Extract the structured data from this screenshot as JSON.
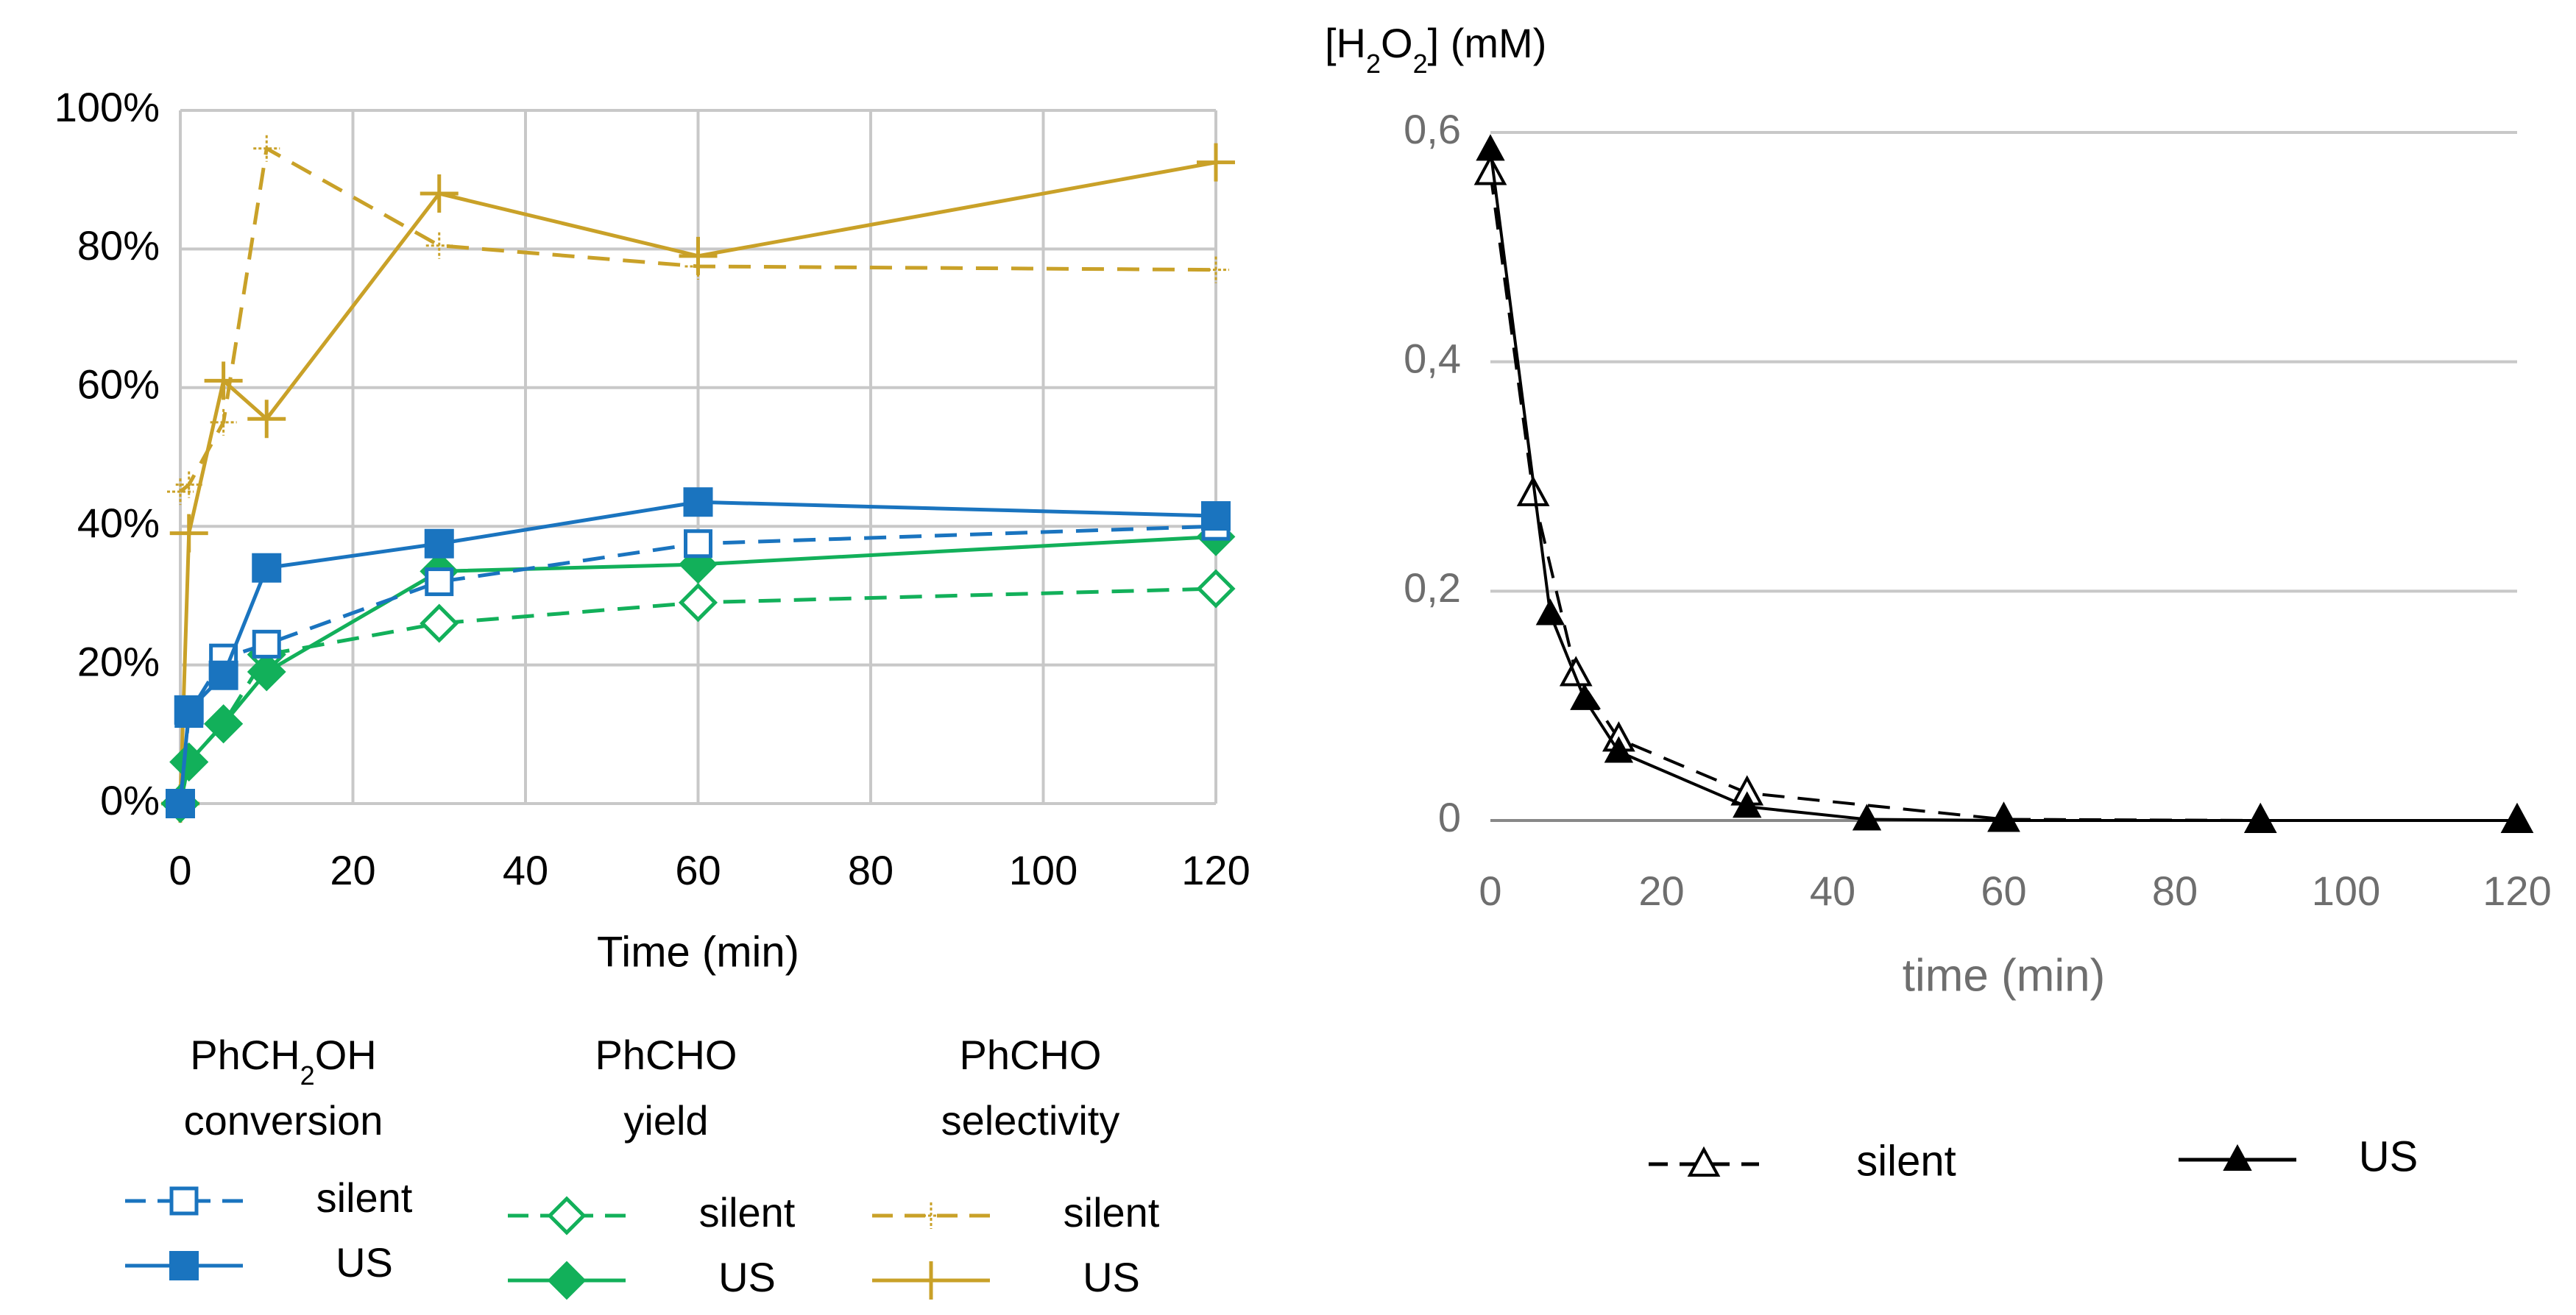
{
  "colors": {
    "conversion": "#1a74bf",
    "yield": "#12b05a",
    "selectivity": "#c9a128",
    "h2o2": "#000000",
    "grid": "#c8c8c8",
    "axis_text_left": "#000000",
    "axis_text_right": "#6e6e6e"
  },
  "chart_data": [
    {
      "type": "line",
      "title": "",
      "xlabel": "Time (min)",
      "ylabel": "",
      "xlim": [
        0,
        120
      ],
      "ylim": [
        0,
        100
      ],
      "xticks": [
        "0",
        "20",
        "40",
        "60",
        "80",
        "100",
        "120"
      ],
      "yticks": [
        "0%",
        "20%",
        "40%",
        "60%",
        "80%",
        "100%"
      ],
      "grid": "horizontal",
      "legend_groups": [
        {
          "title_parts": [
            "PhCH",
            "2",
            "OH"
          ],
          "title_line2": "conversion"
        },
        {
          "title_parts": [
            "PhCHO",
            "",
            ""
          ],
          "title_line2": "yield"
        },
        {
          "title_parts": [
            "PhCHO",
            "",
            ""
          ],
          "title_line2": "selectivity"
        }
      ],
      "series": [
        {
          "name": "silent",
          "group": "PhCH2OH conversion",
          "style": "dashed",
          "marker": "open-square",
          "x": [
            0,
            1,
            5,
            10,
            30,
            60,
            120
          ],
          "values": [
            0,
            13,
            21,
            23,
            32,
            37.5,
            40
          ]
        },
        {
          "name": "US",
          "group": "PhCH2OH conversion",
          "style": "solid",
          "marker": "filled-square",
          "x": [
            0,
            1,
            5,
            10,
            30,
            60,
            120
          ],
          "values": [
            0,
            13.5,
            18.5,
            34,
            37.5,
            43.5,
            41.5
          ]
        },
        {
          "name": "silent",
          "group": "PhCHO yield",
          "style": "dashed",
          "marker": "open-diamond",
          "x": [
            0,
            1,
            5,
            10,
            30,
            60,
            120
          ],
          "values": [
            0,
            6,
            11.5,
            21.5,
            26,
            29,
            31
          ]
        },
        {
          "name": "US",
          "group": "PhCHO yield",
          "style": "solid",
          "marker": "filled-diamond",
          "x": [
            0,
            1,
            5,
            10,
            30,
            60,
            120
          ],
          "values": [
            0,
            6,
            11.5,
            19,
            33.5,
            34.5,
            38.5
          ]
        },
        {
          "name": "silent",
          "group": "PhCHO selectivity",
          "style": "dashed",
          "marker": "small-plus",
          "x": [
            0,
            1,
            5,
            10,
            30,
            60,
            120
          ],
          "values": [
            45,
            46,
            55,
            94.5,
            80.5,
            77.5,
            77
          ]
        },
        {
          "name": "US",
          "group": "PhCHO selectivity",
          "style": "solid",
          "marker": "plus",
          "x": [
            0,
            1,
            5,
            10,
            30,
            60,
            120
          ],
          "values": [
            0,
            39,
            61,
            55.5,
            88,
            79,
            92.5
          ]
        }
      ]
    },
    {
      "type": "line",
      "title_parts": [
        "[H",
        "2",
        "O",
        "2",
        "] (mM)"
      ],
      "xlabel": "time (min)",
      "ylabel": "",
      "xlim": [
        0,
        120
      ],
      "ylim": [
        0,
        0.6
      ],
      "xticks": [
        "0",
        "20",
        "40",
        "60",
        "80",
        "100",
        "120"
      ],
      "yticks": [
        "0",
        "0,2",
        "0,4",
        "0,6"
      ],
      "grid": "horizontal",
      "series": [
        {
          "name": "silent",
          "style": "dashed",
          "marker": "open-triangle",
          "x": [
            0,
            5,
            10,
            15,
            30,
            60,
            90,
            120
          ],
          "values": [
            0.565,
            0.285,
            0.128,
            0.071,
            0.024,
            0.001,
            0,
            0
          ]
        },
        {
          "name": "US",
          "style": "solid",
          "marker": "filled-triangle",
          "x": [
            0,
            7,
            11,
            15,
            30,
            44,
            60,
            90,
            120
          ],
          "values": [
            0.585,
            0.18,
            0.106,
            0.06,
            0.012,
            0.001,
            0,
            0,
            0
          ]
        }
      ]
    }
  ]
}
